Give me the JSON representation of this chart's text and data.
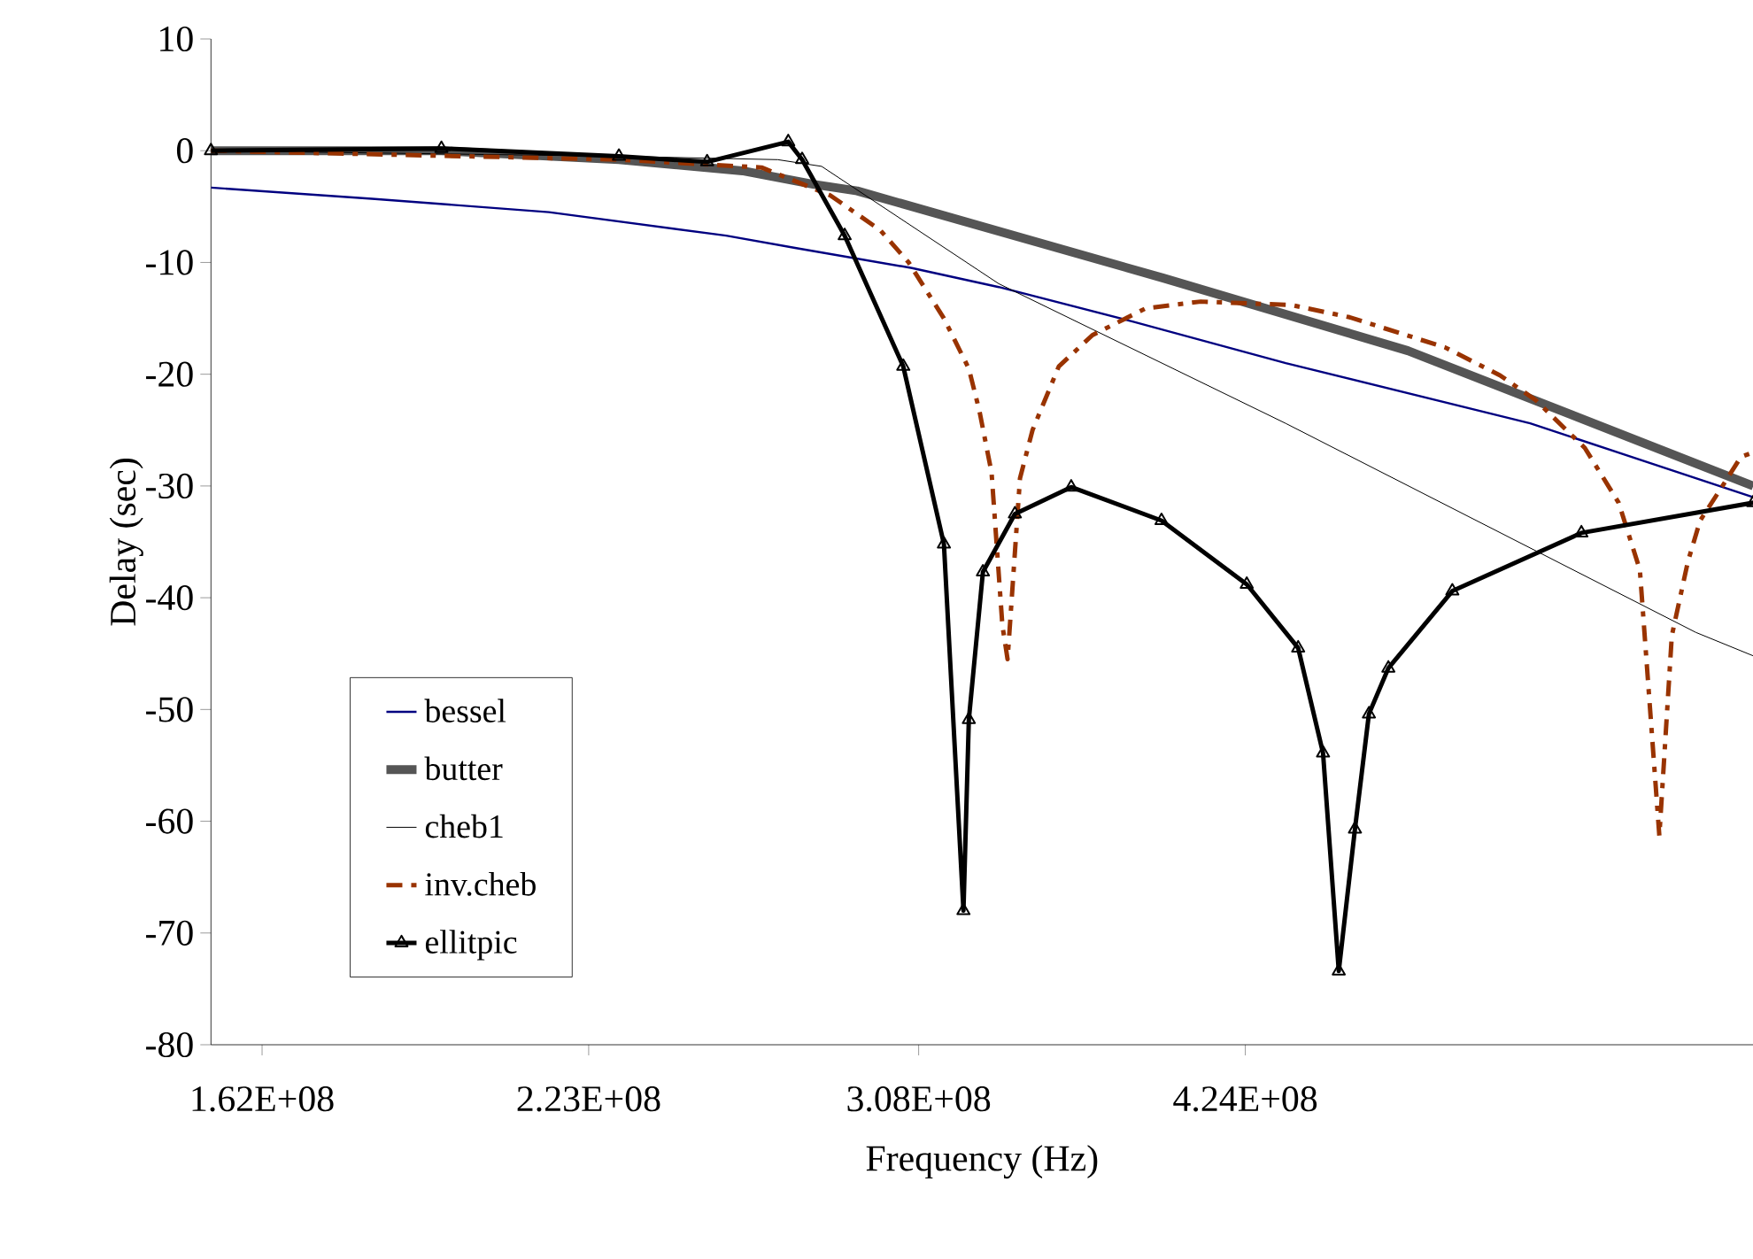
{
  "chart_data": {
    "type": "line",
    "xlabel": "Frequency (Hz)",
    "ylabel": "Delay (sec)",
    "log": "x",
    "xlim": [
      154100000,
      697000000
    ],
    "xticks": [
      {
        "value": 162000000,
        "label": "1.62E+08"
      },
      {
        "value": 223000000,
        "label": "2.23E+08"
      },
      {
        "value": 308000000,
        "label": "3.08E+08"
      },
      {
        "value": 424000000,
        "label": "4.24E+08"
      }
    ],
    "ylim": [
      -80,
      10
    ],
    "yticks": [
      -80,
      -70,
      -60,
      -50,
      -40,
      -30,
      -20,
      -10,
      0,
      10
    ],
    "legend": "bottom left",
    "line_style": "solid",
    "series": [
      {
        "name": "bessel",
        "color": "#000080",
        "x": [
          154100000,
          180400000,
          214500000,
          255100000,
          272900000,
          306000000,
          333100000,
          380000000,
          441100000,
          560300000,
          697000000
        ],
        "values": [
          -3.3,
          -4.3,
          -5.5,
          -7.6,
          -8.7,
          -10.5,
          -12.2,
          -15.3,
          -19.0,
          -24.4,
          -31
        ]
      },
      {
        "name": "butter",
        "color": "#555555",
        "x": [
          154100000,
          193100000,
          229700000,
          259200000,
          277800000,
          290000000,
          391400000,
          497100000,
          697000000
        ],
        "values": [
          0,
          0,
          -0.8,
          -1.8,
          -3,
          -3.6,
          -11.4,
          -17.9,
          -30
        ]
      },
      {
        "name": "cheb1",
        "color": "#000000",
        "x": [
          154100000,
          229700000,
          268300000,
          280100000,
          333100000,
          441100000,
          658900000,
          697000000
        ],
        "values": [
          0,
          -0.5,
          -0.8,
          -1.4,
          -11.9,
          -24.4,
          -43.1,
          -45.2
        ]
      },
      {
        "name": "inv.cheb",
        "color": "#993300",
        "line_style": "dashed",
        "x": [
          154100000,
          229700000,
          264100000,
          282500000,
          296600000,
          305000000,
          315700000,
          323500000,
          326900000,
          330800000,
          334300000,
          336000000,
          340100000,
          344300000,
          353300000,
          365100000,
          384700000,
          405900000,
          443400000,
          469500000,
          515500000,
          544000000,
          563200000,
          591100000,
          611000000,
          623800000,
          635800000,
          643600000,
          653800000,
          661700000,
          674500000,
          688600000,
          697000000
        ],
        "values": [
          0,
          -0.8,
          -1.5,
          -4,
          -7.1,
          -10,
          -15,
          -19.5,
          -23.3,
          -28.8,
          -42.5,
          -45.5,
          -29.3,
          -25,
          -19.3,
          -16.5,
          -14.1,
          -13.5,
          -13.8,
          -14.9,
          -17.6,
          -20.1,
          -22.3,
          -26.6,
          -31.5,
          -37.5,
          -61.3,
          -43.4,
          -36.8,
          -33.1,
          -30.4,
          -27.4,
          -27
        ]
      },
      {
        "name": "ellitpic",
        "color": "#000000",
        "marker": "triangle",
        "x": [
          154100000,
          193100000,
          229700000,
          250400000,
          271100000,
          274800000,
          286500000,
          303400000,
          315700000,
          321800000,
          323500000,
          328000000,
          338400000,
          357600000,
          390700000,
          424600000,
          446500000,
          457500000,
          464600000,
          472000000,
          478500000,
          487700000,
          519200000,
          589100000,
          697000000
        ],
        "values": [
          0,
          0.2,
          -0.5,
          -1,
          0.8,
          -0.8,
          -7.6,
          -19.3,
          -35.2,
          -68.0,
          -50.9,
          -37.7,
          -32.5,
          -30.1,
          -33.1,
          -38.8,
          -44.5,
          -53.9,
          -73.4,
          -60.7,
          -50.4,
          -46.3,
          -39.4,
          -34.2,
          -31.5
        ]
      }
    ]
  }
}
